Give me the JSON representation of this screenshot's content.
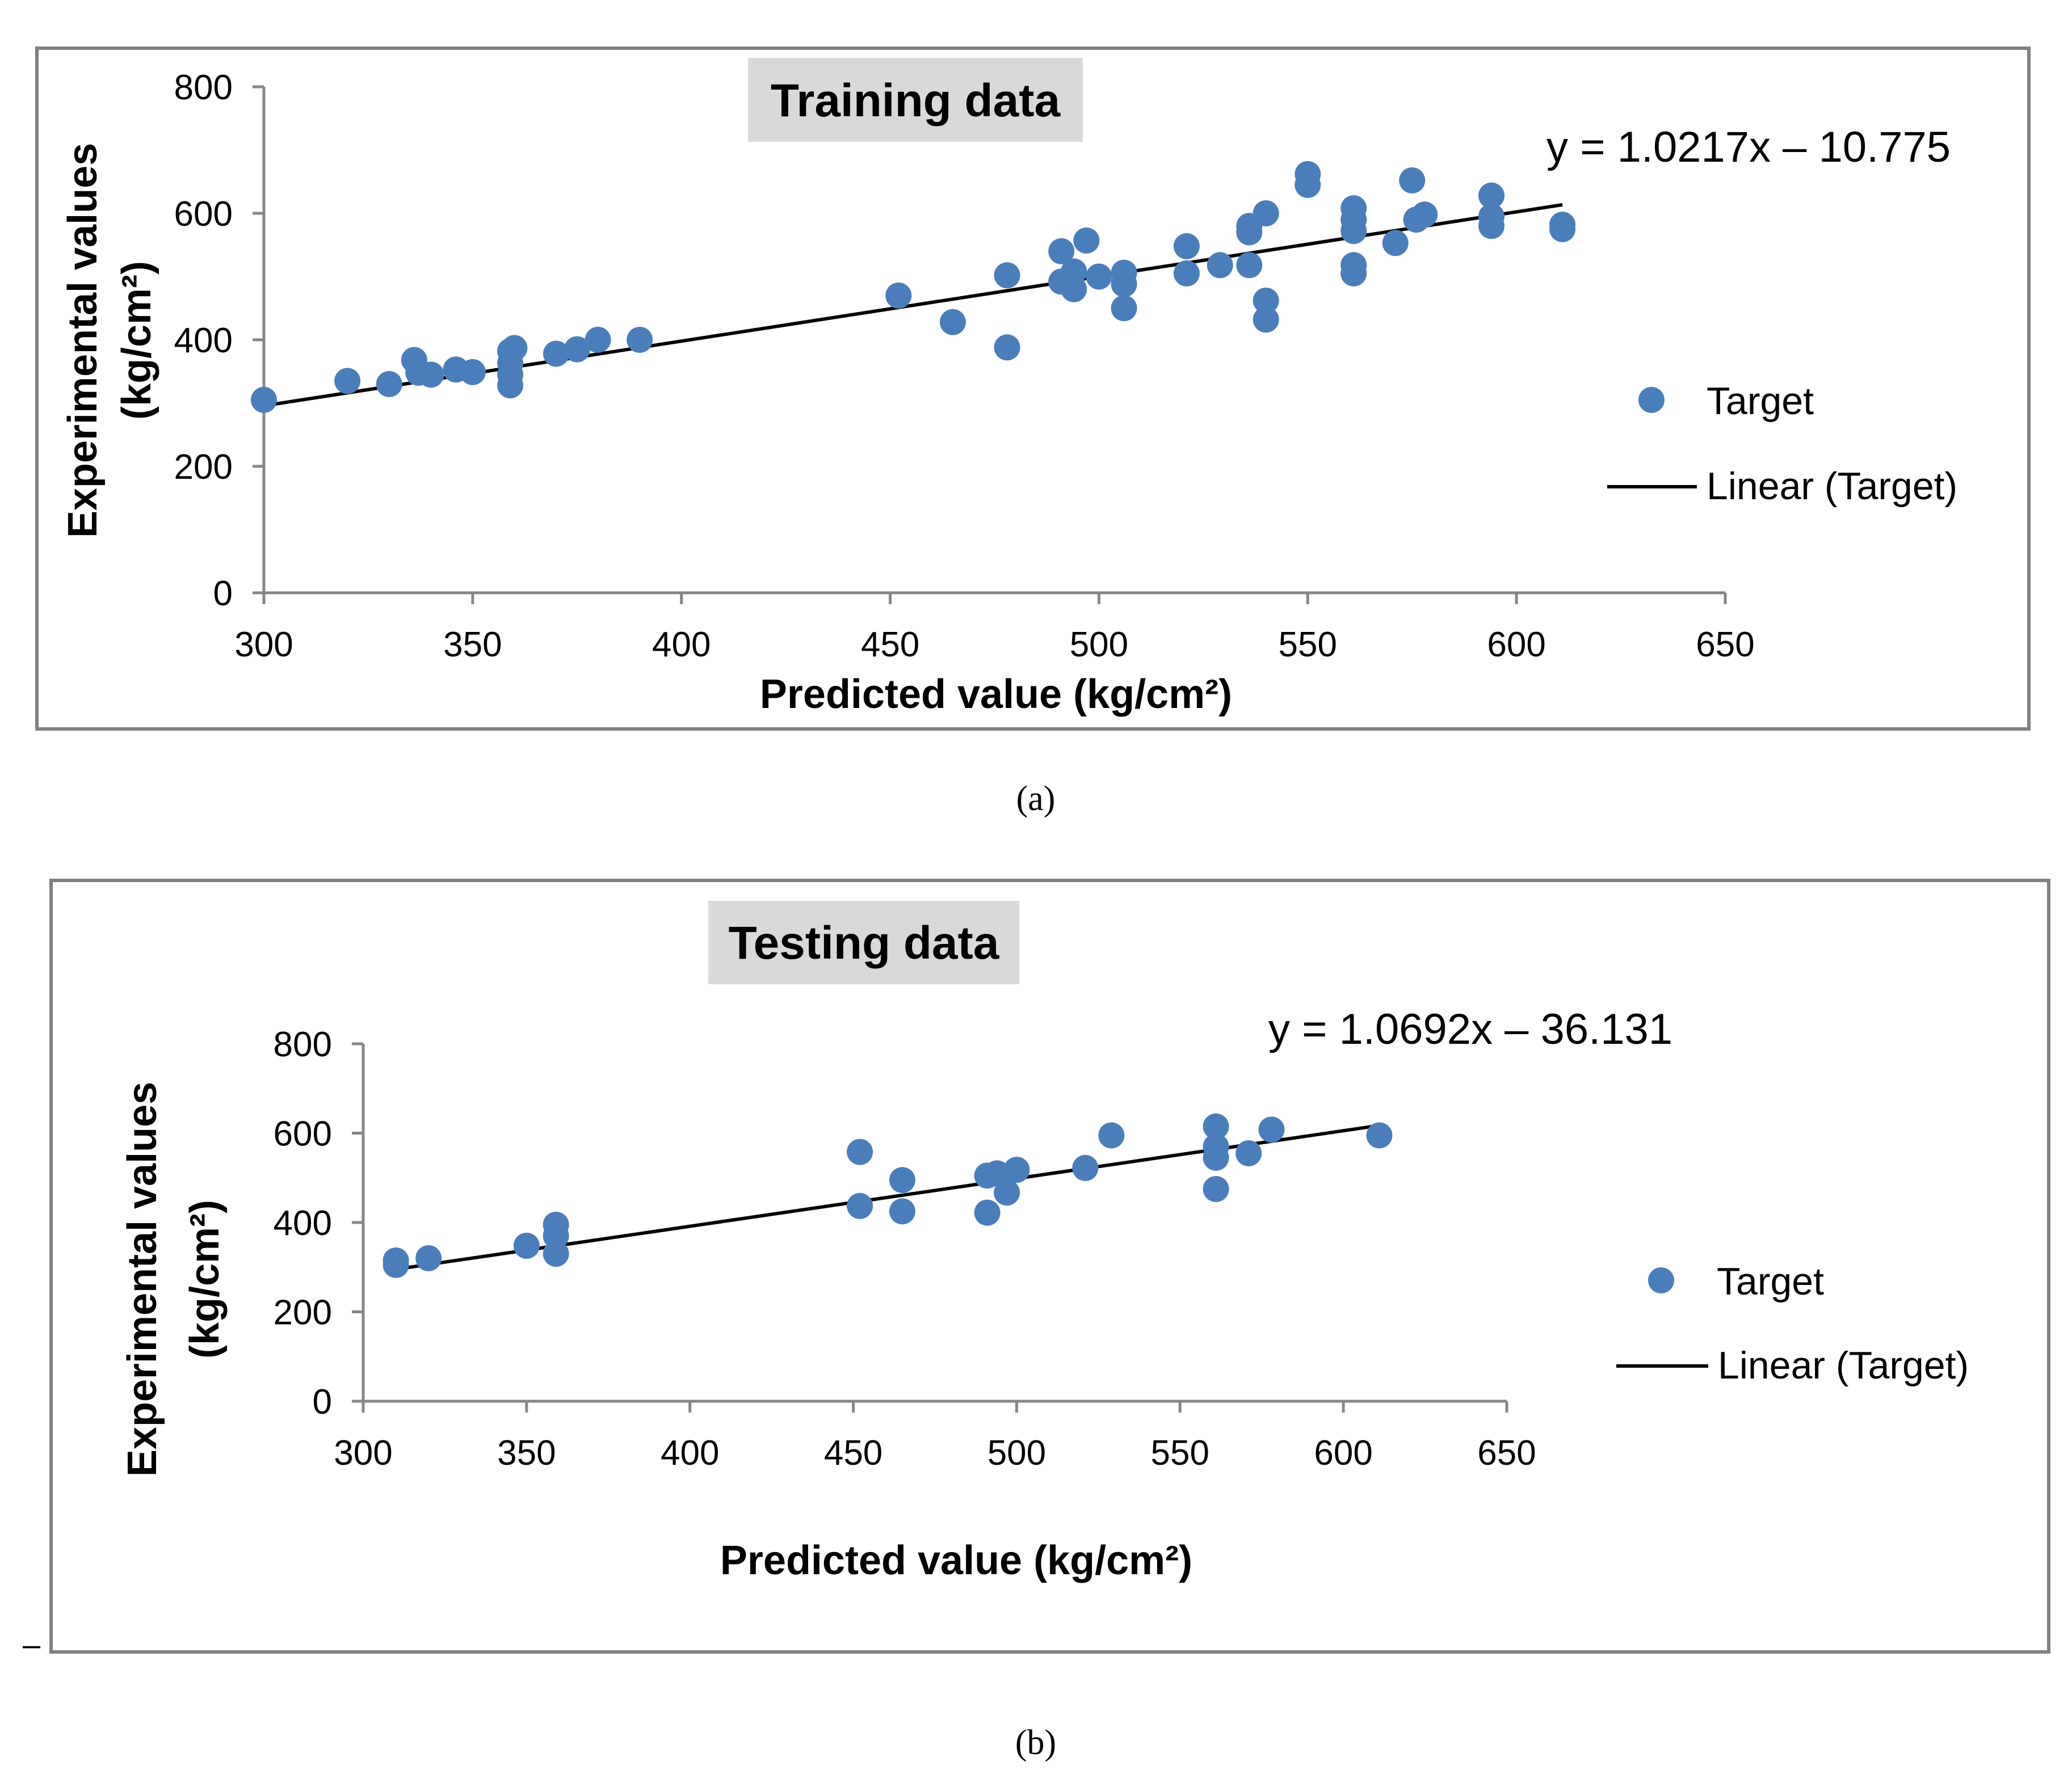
{
  "chart_data": [
    {
      "type": "scatter",
      "title": "Training data",
      "xlabel": "Predicted value (kg/cm²)",
      "ylabel_line1": "Experimental values",
      "ylabel_line2": "(kg/cm²)",
      "xlim": [
        300,
        650
      ],
      "ylim": [
        0,
        800
      ],
      "xticks": [
        "300",
        "350",
        "400",
        "450",
        "500",
        "550",
        "600",
        "650"
      ],
      "yticks": [
        "0",
        "200",
        "400",
        "600",
        "800"
      ],
      "equation": "y = 1.0217x – 10.775",
      "trendline": {
        "slope": 1.0217,
        "intercept": -10.775,
        "x_range": [
          300,
          611
        ]
      },
      "legend": {
        "marker_label": "Target",
        "line_label": "Linear (Target)"
      },
      "caption": "(a)",
      "series": [
        {
          "name": "Target",
          "x": [
            300,
            320,
            330,
            336,
            337,
            340,
            346,
            350,
            359,
            359,
            359,
            359,
            360,
            370,
            375,
            380,
            390,
            452,
            465,
            478,
            478,
            491,
            491,
            494,
            494,
            497,
            500,
            506,
            506,
            506,
            521,
            521,
            529,
            536,
            536,
            536,
            540,
            540,
            540,
            550,
            550,
            561,
            561,
            561,
            561,
            561,
            571,
            575,
            576,
            578,
            594,
            594,
            594,
            611,
            611
          ],
          "y": [
            305,
            335,
            330,
            368,
            348,
            345,
            353,
            349,
            382,
            363,
            345,
            328,
            387,
            378,
            385,
            400,
            400,
            470,
            428,
            502,
            388,
            540,
            492,
            508,
            480,
            557,
            500,
            506,
            488,
            450,
            548,
            505,
            518,
            580,
            570,
            518,
            600,
            462,
            432,
            662,
            645,
            608,
            590,
            572,
            518,
            505,
            553,
            652,
            590,
            598,
            628,
            595,
            580,
            582,
            575
          ]
        }
      ]
    },
    {
      "type": "scatter",
      "title": "Testing data",
      "xlabel": "Predicted value (kg/cm²)",
      "ylabel_line1": "Experimental values",
      "ylabel_line2": "(kg/cm²)",
      "xlim": [
        300,
        650
      ],
      "ylim": [
        0,
        800
      ],
      "xticks": [
        "300",
        "350",
        "400",
        "450",
        "500",
        "550",
        "600",
        "650"
      ],
      "yticks": [
        "0",
        "200",
        "400",
        "600",
        "800"
      ],
      "equation": "y = 1.0692x – 36.131",
      "trendline": {
        "slope": 1.0692,
        "intercept": -36.131,
        "x_range": [
          310,
          611
        ]
      },
      "legend": {
        "marker_label": "Target",
        "line_label": "Linear (Target)"
      },
      "caption": "(b)",
      "series": [
        {
          "name": "Target",
          "x": [
            310,
            310,
            320,
            350,
            359,
            359,
            359,
            452,
            452,
            465,
            465,
            491,
            491,
            494,
            497,
            500,
            521,
            529,
            561,
            561,
            561,
            561,
            571,
            578,
            611
          ],
          "y": [
            315,
            305,
            320,
            348,
            395,
            370,
            330,
            558,
            437,
            495,
            425,
            505,
            422,
            510,
            467,
            518,
            522,
            595,
            615,
            570,
            545,
            475,
            555,
            608,
            595
          ]
        }
      ]
    }
  ],
  "colors": {
    "marker": "#4a7ebb",
    "line": "#000000",
    "title_bg": "#d9d9d9",
    "frame": "#808080"
  },
  "stray_mark": "–"
}
